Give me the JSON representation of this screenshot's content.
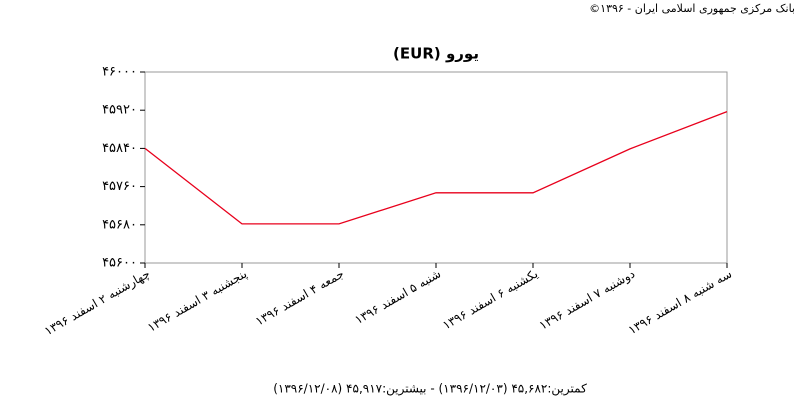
{
  "chart_data": {
    "type": "line",
    "header": "بانک مرکزی جمهوری اسلامی ایران - ۱۳۹۶©",
    "title": "یورو (EUR)",
    "footer": "کمترین:۴۵,۶۸۲ (۱۳۹۶/۱۲/۰۳) - بیشترین:۴۵,۹۱۷ (۱۳۹۶/۱۲/۰۸)",
    "categories": [
      "چهارشنبه ۲ اسفند ۱۳۹۶",
      "پنجشنبه ۳ اسفند ۱۳۹۶",
      "جمعه ۴ اسفند ۱۳۹۶",
      "شنبه ۵ اسفند ۱۳۹۶",
      "یکشنبه ۶ اسفند ۱۳۹۶",
      "دوشنبه ۷ اسفند ۱۳۹۶",
      "سه شنبه ۸ اسفند ۱۳۹۶"
    ],
    "values": [
      45840,
      45682,
      45682,
      45747,
      45747,
      45839,
      45917
    ],
    "color": "#e8001c",
    "ylim": [
      45600,
      46000
    ],
    "yticks": [
      {
        "value": 45600,
        "label": "۴۵۶۰۰"
      },
      {
        "value": 45680,
        "label": "۴۵۶۸۰"
      },
      {
        "value": 45760,
        "label": "۴۵۷۶۰"
      },
      {
        "value": 45840,
        "label": "۴۵۸۴۰"
      },
      {
        "value": 45920,
        "label": "۴۵۹۲۰"
      },
      {
        "value": 46000,
        "label": "۴۶۰۰۰"
      }
    ],
    "grid": false
  }
}
